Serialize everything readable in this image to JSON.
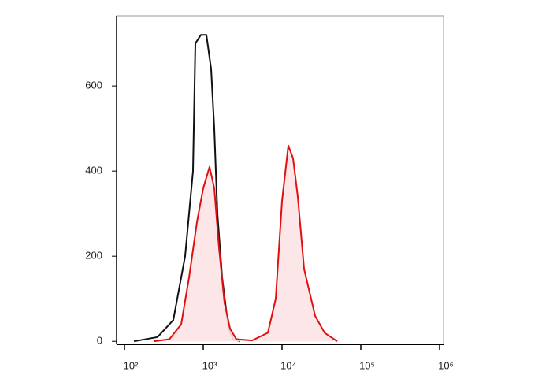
{
  "chart_data": {
    "type": "line",
    "log_x": true,
    "xlim": [
      79.4,
      1122018
    ],
    "xticks": [
      {
        "value": 100,
        "label": "10²"
      },
      {
        "value": 1000,
        "label": "10³"
      },
      {
        "value": 10000,
        "label": "10⁴"
      },
      {
        "value": 100000,
        "label": "10⁵"
      },
      {
        "value": 1000000,
        "label": "10⁶"
      }
    ],
    "ylim": [
      -7,
      765
    ],
    "yticks": [
      0,
      200,
      400,
      600
    ],
    "series": [
      {
        "color": "#111111",
        "fill": "none",
        "x": [
          132,
          263,
          417,
          589,
          741,
          794,
          933,
          1096,
          1259,
          1380,
          1514,
          1738,
          2089,
          2399,
          2951
        ],
        "values": [
          0,
          10,
          50,
          200,
          400,
          700,
          720,
          720,
          640,
          500,
          300,
          150,
          30,
          5,
          0
        ]
      },
      {
        "color": "#e01010",
        "fill": "#fde3e6",
        "x": [
          234,
          372,
          525,
          661,
          832,
          1000,
          1202,
          1380,
          1585,
          1862,
          2188,
          2630,
          4169,
          6607,
          8318,
          10000,
          12023,
          13804,
          15849,
          19055,
          26303,
          34674,
          50119
        ],
        "values": [
          0,
          5,
          40,
          150,
          280,
          360,
          410,
          360,
          220,
          90,
          30,
          5,
          2,
          20,
          100,
          330,
          460,
          430,
          340,
          170,
          60,
          20,
          0
        ]
      }
    ]
  }
}
